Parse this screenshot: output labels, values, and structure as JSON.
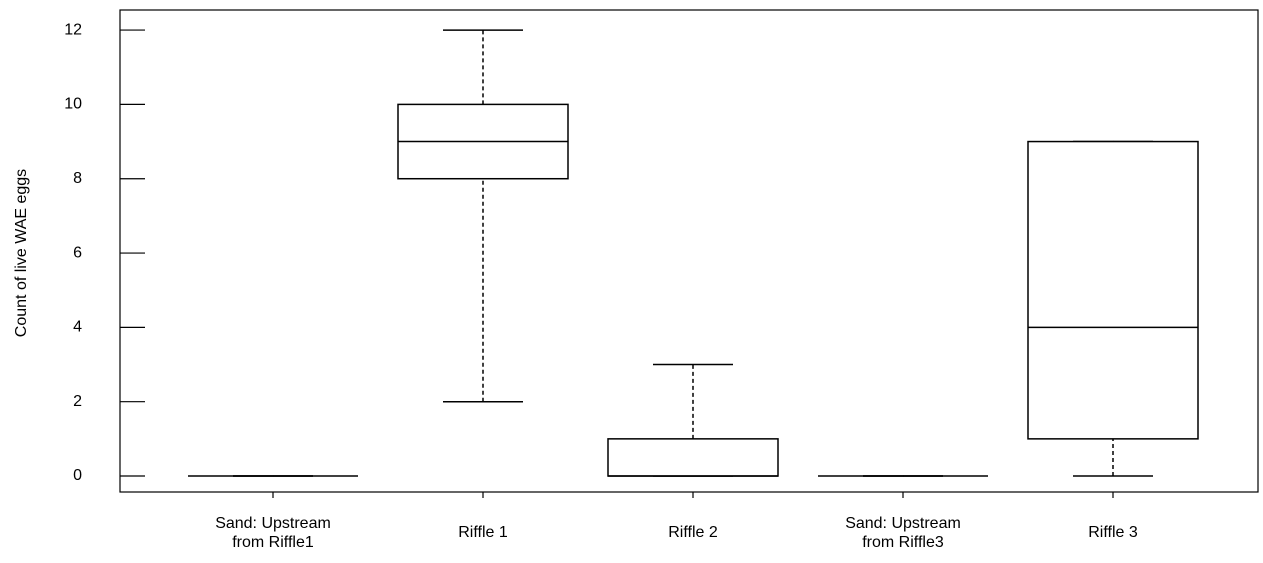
{
  "chart_data": {
    "type": "box",
    "y_label": "Count of live WAE eggs",
    "categories": [
      "Sand: Upstream\nfrom Riffle1",
      "Riffle 1",
      "Riffle 2",
      "Sand:  Upstream\nfrom Riffle3",
      "Riffle 3"
    ],
    "values": [
      {
        "min": 0,
        "q1": 0,
        "median": 0,
        "q3": 0,
        "max": 0
      },
      {
        "min": 2,
        "q1": 8,
        "median": 9,
        "q3": 10,
        "max": 12
      },
      {
        "min": 0,
        "q1": 0,
        "median": 0,
        "q3": 1,
        "max": 3
      },
      {
        "min": 0,
        "q1": 0,
        "median": 0,
        "q3": 0,
        "max": 0
      },
      {
        "min": 0,
        "q1": 1,
        "median": 4,
        "q3": 9,
        "max": 9
      }
    ],
    "color": "#000000",
    "ylim": [
      -0.43,
      12.54
    ],
    "yticks": [
      0,
      2,
      4,
      6,
      8,
      10,
      12
    ]
  }
}
